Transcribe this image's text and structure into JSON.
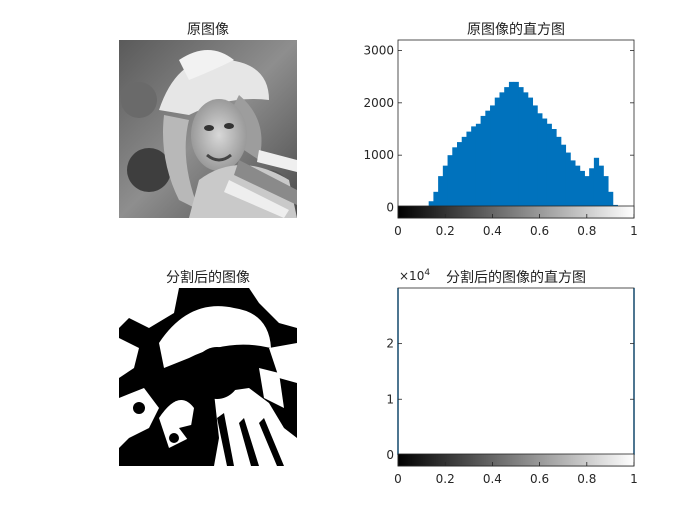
{
  "titles": {
    "original_image": "原图像",
    "original_hist": "原图像的直方图",
    "segmented_image": "分割后的图像",
    "segmented_hist": "分割后的图像的直方图"
  },
  "segmented_hist_multiplier": {
    "base": "×10",
    "exp": "4"
  },
  "colors": {
    "bar_fill": "#0072bd",
    "axis": "#262626",
    "background": "#ffffff"
  },
  "chart_data": [
    {
      "type": "bar",
      "title": "原图像的直方图",
      "xlim": [
        0,
        1
      ],
      "ylim": [
        -200,
        3200
      ],
      "xticks": [
        0,
        0.2,
        0.4,
        0.6,
        0.8,
        1
      ],
      "xtick_labels": [
        "0",
        "0.2",
        "0.4",
        "0.6",
        "0.8",
        "1"
      ],
      "yticks": [
        0,
        1000,
        2000,
        3000
      ],
      "ytick_labels": [
        "0",
        "1000",
        "2000",
        "3000"
      ],
      "colorbar": "gray",
      "series": [
        {
          "x": [
            0.1,
            0.12,
            0.14,
            0.16,
            0.18,
            0.2,
            0.22,
            0.24,
            0.26,
            0.28,
            0.3,
            0.32,
            0.34,
            0.36,
            0.38,
            0.4,
            0.42,
            0.44,
            0.46,
            0.48,
            0.5,
            0.52,
            0.54,
            0.56,
            0.58,
            0.6,
            0.62,
            0.64,
            0.66,
            0.68,
            0.7,
            0.72,
            0.74,
            0.76,
            0.78,
            0.8,
            0.82,
            0.84,
            0.86,
            0.88,
            0.9,
            0.92,
            0.94
          ],
          "values": [
            0,
            20,
            120,
            300,
            600,
            800,
            1000,
            1150,
            1250,
            1350,
            1450,
            1550,
            1600,
            1750,
            1850,
            1950,
            2100,
            2200,
            2300,
            2400,
            2400,
            2300,
            2200,
            2100,
            1950,
            1800,
            1700,
            1600,
            1500,
            1350,
            1200,
            1050,
            900,
            800,
            700,
            600,
            750,
            950,
            800,
            600,
            300,
            50,
            0
          ]
        }
      ]
    },
    {
      "type": "bar",
      "title": "分割后的图像的直方图",
      "xlim": [
        0,
        1
      ],
      "ylim": [
        -0.2,
        3.0
      ],
      "xticks": [
        0,
        0.2,
        0.4,
        0.6,
        0.8,
        1
      ],
      "xtick_labels": [
        "0",
        "0.2",
        "0.4",
        "0.6",
        "0.8",
        "1"
      ],
      "yticks": [
        0,
        1,
        2
      ],
      "ytick_labels": [
        "0",
        "1",
        "2"
      ],
      "y_multiplier": "×10^4",
      "colorbar": "gray",
      "series": [
        {
          "x": [
            0,
            1
          ],
          "values": [
            3.0,
            3.0
          ]
        }
      ]
    }
  ]
}
